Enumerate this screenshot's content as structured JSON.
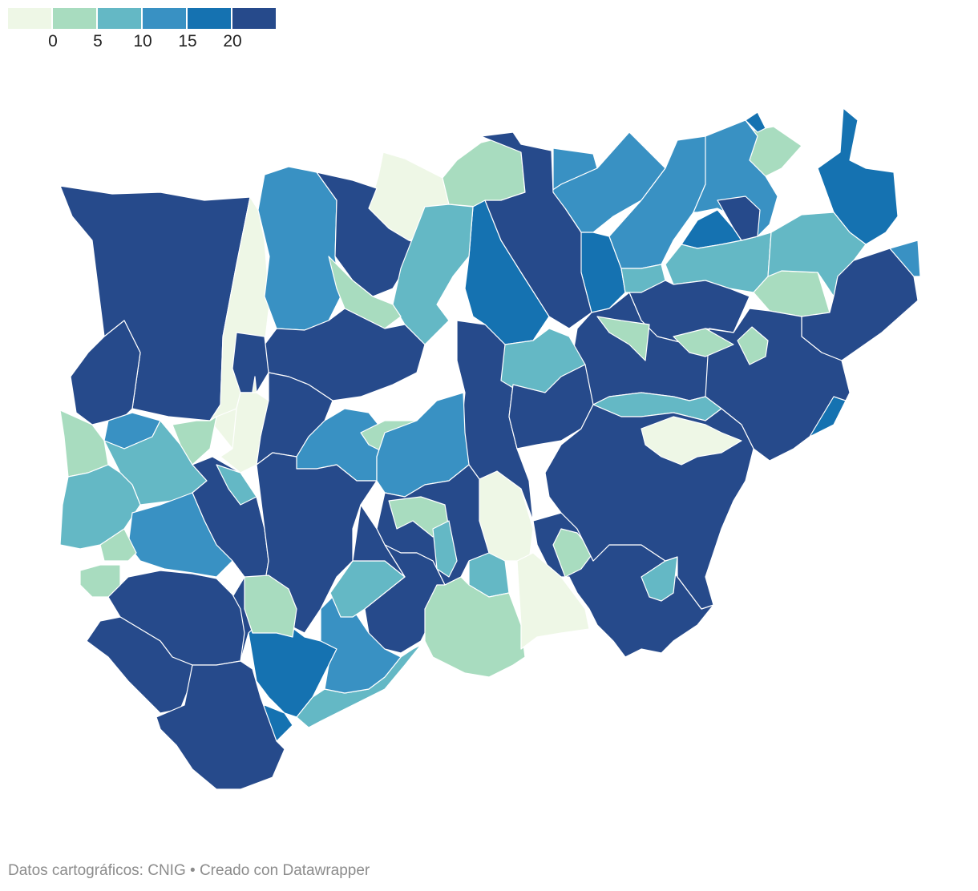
{
  "legend": {
    "colors": [
      "#eef7e6",
      "#a8dcbf",
      "#64b8c5",
      "#3991c3",
      "#1572b1",
      "#264a8b"
    ],
    "ticks": [
      "0",
      "5",
      "10",
      "15",
      "20"
    ]
  },
  "map": {
    "regions": [
      {
        "id": "r1",
        "cls": 5
      },
      {
        "id": "r2",
        "cls": 0
      },
      {
        "id": "r3",
        "cls": 3
      },
      {
        "id": "r4",
        "cls": 5
      },
      {
        "id": "r5",
        "cls": 0
      },
      {
        "id": "r6",
        "cls": 1
      },
      {
        "id": "r7",
        "cls": 5
      },
      {
        "id": "r8",
        "cls": 4
      },
      {
        "id": "r9",
        "cls": 2
      },
      {
        "id": "r10",
        "cls": 3
      },
      {
        "id": "r11",
        "cls": 3
      },
      {
        "id": "r12",
        "cls": 4
      },
      {
        "id": "r13",
        "cls": 1
      },
      {
        "id": "r14",
        "cls": 4
      },
      {
        "id": "r15",
        "cls": 5
      },
      {
        "id": "r16",
        "cls": 3
      },
      {
        "id": "r17",
        "cls": 3
      },
      {
        "id": "r18",
        "cls": 4
      },
      {
        "id": "r19",
        "cls": 2
      },
      {
        "id": "r20",
        "cls": 2
      },
      {
        "id": "r21",
        "cls": 4
      },
      {
        "id": "r22",
        "cls": 5
      },
      {
        "id": "r23",
        "cls": 1
      },
      {
        "id": "r24",
        "cls": 5
      },
      {
        "id": "r25",
        "cls": 2
      },
      {
        "id": "r26",
        "cls": 5
      },
      {
        "id": "r27",
        "cls": 5
      },
      {
        "id": "r28",
        "cls": 1
      },
      {
        "id": "r29",
        "cls": 5
      },
      {
        "id": "r30",
        "cls": 1
      },
      {
        "id": "r31",
        "cls": 3
      },
      {
        "id": "r32",
        "cls": 2
      },
      {
        "id": "r33",
        "cls": 1
      },
      {
        "id": "r34",
        "cls": 4
      },
      {
        "id": "r35",
        "cls": 1
      },
      {
        "id": "r36",
        "cls": 5
      },
      {
        "id": "r37",
        "cls": 5
      },
      {
        "id": "r38",
        "cls": 3
      },
      {
        "id": "r39",
        "cls": 2
      },
      {
        "id": "r40",
        "cls": 1
      },
      {
        "id": "r41",
        "cls": 0
      },
      {
        "id": "r42",
        "cls": 5
      },
      {
        "id": "r43",
        "cls": 1
      },
      {
        "id": "r44",
        "cls": 0
      },
      {
        "id": "r45",
        "cls": 5
      },
      {
        "id": "r46",
        "cls": 3
      },
      {
        "id": "r47",
        "cls": 2
      },
      {
        "id": "r48",
        "cls": 2
      },
      {
        "id": "r49",
        "cls": 3
      },
      {
        "id": "r50",
        "cls": 1
      },
      {
        "id": "r51",
        "cls": 5
      },
      {
        "id": "r52",
        "cls": 5
      },
      {
        "id": "r53",
        "cls": 4
      },
      {
        "id": "r54",
        "cls": 4
      },
      {
        "id": "r55",
        "cls": 2
      },
      {
        "id": "r56",
        "cls": 3
      },
      {
        "id": "r57",
        "cls": 5
      },
      {
        "id": "r58",
        "cls": 1
      },
      {
        "id": "r59",
        "cls": 2
      },
      {
        "id": "r60",
        "cls": 0
      },
      {
        "id": "r61",
        "cls": 5
      },
      {
        "id": "r62",
        "cls": 1
      },
      {
        "id": "r63",
        "cls": 2
      },
      {
        "id": "r64",
        "cls": 5
      },
      {
        "id": "r65",
        "cls": 3
      },
      {
        "id": "r66",
        "cls": 5
      },
      {
        "id": "r67",
        "cls": 1
      },
      {
        "id": "r68",
        "cls": 5
      },
      {
        "id": "r69",
        "cls": 5
      },
      {
        "id": "r70",
        "cls": 2
      },
      {
        "id": "r71",
        "cls": 2
      },
      {
        "id": "r72",
        "cls": 5
      }
    ]
  },
  "footer": {
    "source": "Datos cartográficos: CNIG",
    "credit": "• Creado con Datawrapper"
  }
}
